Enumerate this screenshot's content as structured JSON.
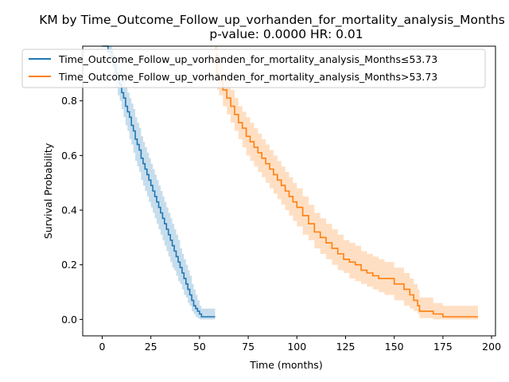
{
  "chart_data": {
    "type": "line",
    "title": "KM by Time_Outcome_Follow_up_vorhanden_for_mortality_analysis_Months",
    "subtitle": "p-value: 0.0000  HR: 0.01",
    "xlabel": "Time (months)",
    "ylabel": "Survival Probability",
    "xlim": [
      -10,
      202
    ],
    "ylim": [
      -0.06,
      1.0
    ],
    "xticks": [
      0,
      25,
      50,
      75,
      100,
      125,
      150,
      175,
      200
    ],
    "yticks": [
      0.0,
      0.2,
      0.4,
      0.6,
      0.8
    ],
    "legend_position": "top",
    "series": [
      {
        "name": "Time_Outcome_Follow_up_vorhanden_for_mortality_analysis_Months≤53.73",
        "color": "#1f77b4",
        "fill_color": "#1f77b4",
        "step": true,
        "x": [
          0,
          3,
          5,
          6,
          7,
          8,
          9,
          10,
          11,
          12,
          13,
          14,
          15,
          16,
          17,
          18,
          19,
          20,
          21,
          22,
          23,
          24,
          25,
          26,
          27,
          28,
          29,
          30,
          31,
          32,
          33,
          34,
          35,
          36,
          37,
          38,
          39,
          40,
          41,
          42,
          43,
          44,
          45,
          46,
          47,
          48,
          49,
          50,
          51,
          52,
          58
        ],
        "y": [
          1.0,
          0.98,
          0.96,
          0.93,
          0.9,
          0.88,
          0.86,
          0.83,
          0.81,
          0.78,
          0.76,
          0.74,
          0.71,
          0.69,
          0.66,
          0.64,
          0.62,
          0.59,
          0.57,
          0.55,
          0.53,
          0.51,
          0.49,
          0.47,
          0.45,
          0.43,
          0.41,
          0.39,
          0.37,
          0.35,
          0.33,
          0.31,
          0.29,
          0.27,
          0.25,
          0.23,
          0.21,
          0.19,
          0.17,
          0.15,
          0.13,
          0.11,
          0.09,
          0.07,
          0.05,
          0.04,
          0.03,
          0.02,
          0.01,
          0.01,
          0.01
        ],
        "ci_lower": [
          1.0,
          0.95,
          0.92,
          0.88,
          0.85,
          0.82,
          0.8,
          0.77,
          0.74,
          0.71,
          0.69,
          0.66,
          0.64,
          0.61,
          0.58,
          0.56,
          0.54,
          0.51,
          0.49,
          0.47,
          0.45,
          0.43,
          0.41,
          0.39,
          0.37,
          0.35,
          0.33,
          0.31,
          0.29,
          0.27,
          0.25,
          0.23,
          0.21,
          0.19,
          0.18,
          0.16,
          0.14,
          0.13,
          0.11,
          0.09,
          0.08,
          0.06,
          0.05,
          0.03,
          0.02,
          0.01,
          0.005,
          0.0,
          0.0,
          0.0,
          0.0
        ],
        "ci_upper": [
          1.0,
          1.0,
          0.99,
          0.97,
          0.95,
          0.93,
          0.92,
          0.9,
          0.88,
          0.85,
          0.83,
          0.81,
          0.79,
          0.77,
          0.74,
          0.72,
          0.7,
          0.67,
          0.65,
          0.63,
          0.61,
          0.59,
          0.57,
          0.55,
          0.53,
          0.51,
          0.49,
          0.47,
          0.45,
          0.43,
          0.41,
          0.39,
          0.37,
          0.35,
          0.33,
          0.31,
          0.29,
          0.26,
          0.24,
          0.22,
          0.2,
          0.18,
          0.16,
          0.13,
          0.11,
          0.09,
          0.07,
          0.05,
          0.04,
          0.04,
          0.04
        ]
      },
      {
        "name": "Time_Outcome_Follow_up_vorhanden_for_mortality_analysis_Months>53.73",
        "color": "#ff7f0e",
        "fill_color": "#ff7f0e",
        "step": true,
        "x": [
          58,
          59,
          60,
          62,
          64,
          66,
          68,
          70,
          72,
          74,
          76,
          78,
          80,
          82,
          84,
          86,
          88,
          90,
          92,
          94,
          96,
          98,
          100,
          103,
          106,
          109,
          112,
          115,
          118,
          121,
          124,
          127,
          130,
          133,
          136,
          139,
          142,
          145,
          150,
          155,
          158,
          160,
          162,
          163,
          170,
          175,
          190,
          193
        ],
        "y": [
          0.97,
          0.9,
          0.88,
          0.84,
          0.81,
          0.78,
          0.75,
          0.72,
          0.7,
          0.67,
          0.65,
          0.63,
          0.61,
          0.59,
          0.57,
          0.55,
          0.53,
          0.51,
          0.49,
          0.47,
          0.45,
          0.43,
          0.41,
          0.38,
          0.35,
          0.32,
          0.3,
          0.28,
          0.26,
          0.24,
          0.22,
          0.21,
          0.2,
          0.18,
          0.17,
          0.16,
          0.15,
          0.15,
          0.13,
          0.11,
          0.09,
          0.07,
          0.05,
          0.03,
          0.02,
          0.01,
          0.01,
          0.01
        ],
        "ci_lower": [
          0.9,
          0.84,
          0.82,
          0.78,
          0.75,
          0.72,
          0.69,
          0.66,
          0.63,
          0.6,
          0.58,
          0.56,
          0.54,
          0.52,
          0.5,
          0.48,
          0.46,
          0.44,
          0.42,
          0.4,
          0.38,
          0.36,
          0.34,
          0.31,
          0.29,
          0.26,
          0.24,
          0.22,
          0.2,
          0.18,
          0.17,
          0.15,
          0.14,
          0.13,
          0.12,
          0.11,
          0.1,
          0.09,
          0.07,
          0.05,
          0.04,
          0.03,
          0.02,
          0.005,
          0.0,
          0.0,
          0.0,
          0.0
        ],
        "ci_upper": [
          1.0,
          0.96,
          0.94,
          0.9,
          0.87,
          0.84,
          0.81,
          0.78,
          0.76,
          0.74,
          0.72,
          0.7,
          0.68,
          0.66,
          0.64,
          0.62,
          0.6,
          0.58,
          0.56,
          0.54,
          0.52,
          0.5,
          0.48,
          0.45,
          0.42,
          0.39,
          0.37,
          0.35,
          0.33,
          0.31,
          0.29,
          0.28,
          0.27,
          0.25,
          0.24,
          0.23,
          0.22,
          0.21,
          0.19,
          0.17,
          0.15,
          0.13,
          0.11,
          0.08,
          0.06,
          0.05,
          0.05,
          0.05
        ]
      }
    ]
  }
}
